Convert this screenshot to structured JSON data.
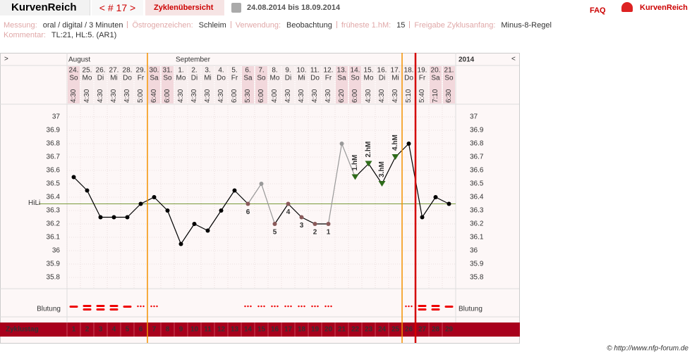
{
  "header": {
    "brand": "KurvenReich",
    "cycle_nav": "< # 17 >",
    "overview": "Zyklenübersicht",
    "date_range": "24.08.2014 bis 18.09.2014",
    "faq": "FAQ",
    "logo_text": "KurvenReich"
  },
  "info": {
    "rows": [
      [
        {
          "label": "Messung:",
          "value": "oral / digital / 3 Minuten"
        },
        {
          "label": "Östrogenzeichen:",
          "value": "Schleim"
        },
        {
          "label": "Verwendung:",
          "value": "Beobachtung"
        },
        {
          "label": "früheste 1.hM:",
          "value": "15"
        },
        {
          "label": "Freigabe Zyklusanfang:",
          "value": "Minus-8-Regel"
        }
      ],
      [
        {
          "label": "Kommentar:",
          "value": "TL:21, HL:5. (AR1)"
        }
      ]
    ]
  },
  "chart_data": {
    "type": "line",
    "nav_prev": ">",
    "nav_next": "<",
    "months": [
      "August",
      "September"
    ],
    "year": "2014",
    "dates": [
      "24.",
      "25.",
      "26.",
      "27.",
      "28.",
      "29.",
      "30.",
      "31.",
      "1.",
      "2.",
      "3.",
      "4.",
      "5.",
      "6.",
      "7.",
      "8.",
      "9.",
      "10.",
      "11.",
      "12.",
      "13.",
      "14.",
      "15.",
      "16.",
      "17.",
      "18.",
      "19.",
      "20.",
      "21."
    ],
    "weekdays": [
      "So",
      "Mo",
      "Di",
      "Mi",
      "Do",
      "Fr",
      "Sa",
      "So",
      "Mo",
      "Di",
      "Mi",
      "Do",
      "Fr",
      "Sa",
      "So",
      "Mo",
      "Di",
      "Mi",
      "Do",
      "Fr",
      "Sa",
      "So",
      "Mo",
      "Di",
      "Mi",
      "Do",
      "Fr",
      "Sa",
      "So"
    ],
    "times": [
      "4:30",
      "4:30",
      "4:30",
      "4:30",
      "4:30",
      "5:00",
      "6:40",
      "6:00",
      "4:30",
      "4:30",
      "4:30",
      "4:30",
      "6:00",
      "5:30",
      "6:00",
      "4:00",
      "4:30",
      "4:30",
      "4:30",
      "4:30",
      "6:20",
      "6:00",
      "4:30",
      "4:30",
      "4:30",
      "5:10",
      "5:40",
      "7:10",
      "6:30"
    ],
    "values": [
      36.55,
      36.45,
      36.25,
      36.25,
      36.25,
      36.35,
      36.4,
      36.3,
      36.05,
      36.2,
      36.15,
      36.3,
      36.45,
      36.35,
      36.5,
      36.2,
      36.35,
      36.25,
      36.2,
      36.2,
      36.8,
      36.55,
      36.65,
      36.5,
      36.7,
      36.8,
      36.25,
      36.4,
      36.35
    ],
    "low_labels": [
      null,
      null,
      null,
      null,
      null,
      null,
      null,
      null,
      null,
      null,
      null,
      null,
      null,
      6,
      null,
      5,
      4,
      3,
      2,
      1,
      null,
      null,
      null,
      null,
      null,
      null,
      null,
      null,
      null
    ],
    "high_labels": [
      null,
      null,
      null,
      null,
      null,
      null,
      null,
      null,
      null,
      null,
      null,
      null,
      null,
      null,
      null,
      null,
      null,
      null,
      null,
      null,
      null,
      "1.hM",
      "2.hM",
      "3.hM",
      "4.hM",
      null,
      null,
      null,
      null
    ],
    "excluded_days": [
      15,
      21
    ],
    "ylim": [
      35.7,
      37.1
    ],
    "yticks": [
      35.8,
      35.9,
      36,
      36.1,
      36.2,
      36.3,
      36.4,
      36.5,
      36.6,
      36.7,
      36.8,
      36.9,
      37
    ],
    "hili_label": "HiLi",
    "hili": 36.35,
    "bleeding_label": "Blutung",
    "bleeding": [
      2,
      3,
      3,
      3,
      2,
      1,
      1,
      0,
      0,
      0,
      0,
      0,
      0,
      1,
      1,
      1,
      1,
      1,
      1,
      1,
      0,
      0,
      0,
      0,
      0,
      1,
      3,
      3,
      2
    ],
    "cycle_day_label": "Zyklustag",
    "cycle_days": [
      1,
      2,
      3,
      4,
      5,
      6,
      7,
      8,
      9,
      10,
      11,
      12,
      13,
      14,
      15,
      16,
      17,
      18,
      19,
      20,
      21,
      22,
      23,
      24,
      25,
      26,
      27,
      28,
      29
    ],
    "vlines": [
      {
        "after_day": 6,
        "color": "#f39200"
      },
      {
        "after_day": 25,
        "color": "#f39200"
      },
      {
        "after_day": 26,
        "color": "#d40000"
      }
    ],
    "credit": "© http://www.nfp-forum.de"
  }
}
